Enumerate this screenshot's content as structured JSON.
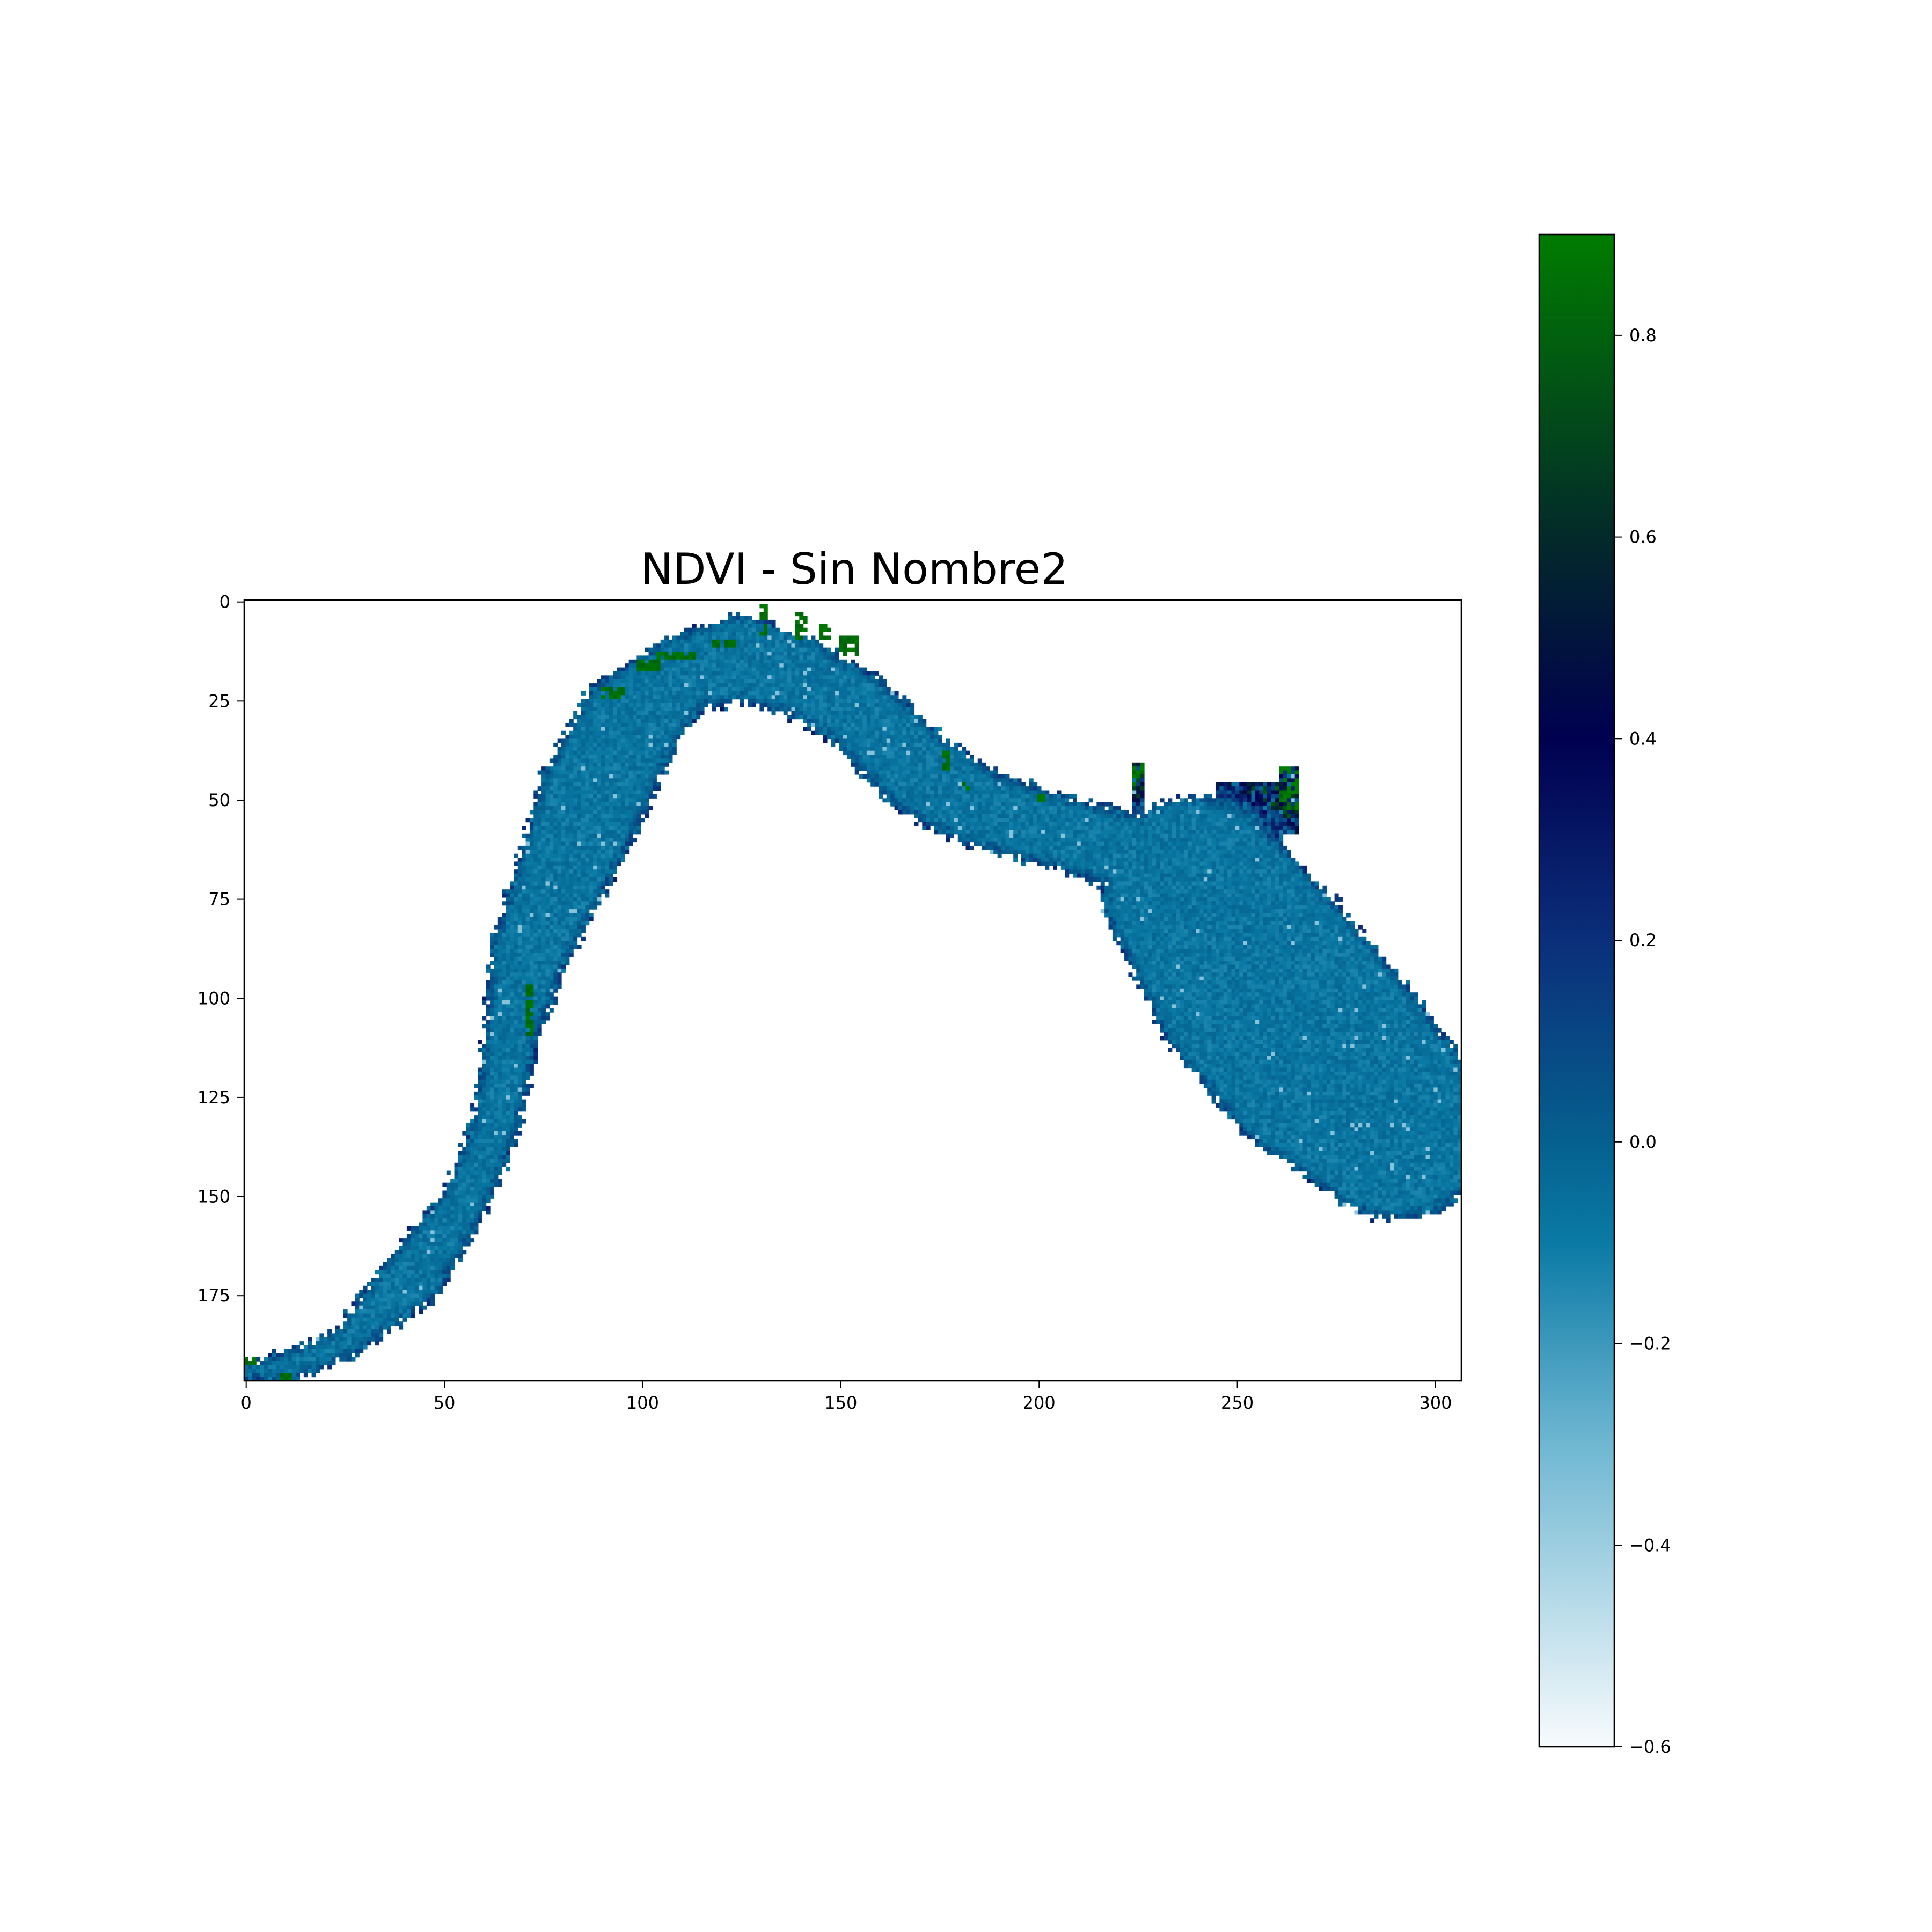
{
  "chart_data": {
    "type": "heatmap",
    "title": "NDVI - Sin Nombre2",
    "xlabel": "",
    "ylabel": "",
    "image_shape": {
      "rows": 197,
      "cols": 307
    },
    "xlim": [
      0,
      307
    ],
    "ylim": [
      197,
      0
    ],
    "x_ticks": [
      0,
      50,
      100,
      150,
      200,
      250,
      300
    ],
    "x_tick_labels": [
      "0",
      "50",
      "100",
      "150",
      "200",
      "250",
      "300"
    ],
    "y_ticks": [
      0,
      25,
      50,
      75,
      100,
      125,
      150,
      175
    ],
    "y_tick_labels": [
      "0",
      "25",
      "50",
      "75",
      "100",
      "125",
      "150",
      "175"
    ],
    "colormap": {
      "name": "NDVI",
      "stops": [
        {
          "value": -0.6,
          "color": "#f7fbfd"
        },
        {
          "value": -0.3,
          "color": "#6fb7d2"
        },
        {
          "value": -0.1,
          "color": "#0a7aa5"
        },
        {
          "value": 0.0,
          "color": "#05608f"
        },
        {
          "value": 0.2,
          "color": "#0b2f7a"
        },
        {
          "value": 0.4,
          "color": "#000050"
        },
        {
          "value": 0.6,
          "color": "#032a2a"
        },
        {
          "value": 0.9,
          "color": "#007c00"
        }
      ]
    },
    "colorbar": {
      "range": [
        -0.6,
        0.9
      ],
      "ticks": [
        0.8,
        0.6,
        0.4,
        0.2,
        0.0,
        -0.2,
        -0.4,
        -0.6
      ],
      "tick_labels": [
        "0.8",
        "0.6",
        "0.4",
        "0.2",
        "0.0",
        "−0.2",
        "−0.4",
        "−0.6"
      ],
      "placement": "right"
    },
    "water_body_centerline": [
      {
        "x": 0,
        "y": 194,
        "width": 2
      },
      {
        "x": 10,
        "y": 193,
        "width": 4
      },
      {
        "x": 25,
        "y": 187,
        "width": 4
      },
      {
        "x": 42,
        "y": 170,
        "width": 8
      },
      {
        "x": 55,
        "y": 152,
        "width": 6
      },
      {
        "x": 63,
        "y": 132,
        "width": 6
      },
      {
        "x": 67,
        "y": 108,
        "width": 7
      },
      {
        "x": 72,
        "y": 87,
        "width": 10
      },
      {
        "x": 80,
        "y": 68,
        "width": 12
      },
      {
        "x": 88,
        "y": 48,
        "width": 14
      },
      {
        "x": 97,
        "y": 30,
        "width": 13
      },
      {
        "x": 110,
        "y": 18,
        "width": 10
      },
      {
        "x": 125,
        "y": 14,
        "width": 11
      },
      {
        "x": 140,
        "y": 19,
        "width": 10
      },
      {
        "x": 155,
        "y": 28,
        "width": 10
      },
      {
        "x": 170,
        "y": 43,
        "width": 11
      },
      {
        "x": 185,
        "y": 52,
        "width": 10
      },
      {
        "x": 205,
        "y": 58,
        "width": 9
      },
      {
        "x": 222,
        "y": 63,
        "width": 10
      },
      {
        "x": 240,
        "y": 73,
        "width": 24
      },
      {
        "x": 255,
        "y": 95,
        "width": 28
      },
      {
        "x": 272,
        "y": 115,
        "width": 28
      },
      {
        "x": 290,
        "y": 132,
        "width": 24
      },
      {
        "x": 302,
        "y": 138,
        "width": 12
      },
      {
        "x": 307,
        "y": 134,
        "width": 8
      }
    ],
    "water_body_lobes": [
      {
        "x": 253,
        "y": 55,
        "w": 16,
        "h": 18
      },
      {
        "x": 263,
        "y": 50,
        "w": 5,
        "h": 16
      },
      {
        "x": 225,
        "y": 47,
        "w": 3,
        "h": 12
      },
      {
        "x": 292,
        "y": 148,
        "w": 16,
        "h": 12
      },
      {
        "x": 261,
        "y": 127,
        "w": 10,
        "h": 6
      }
    ],
    "vegetation_patches": [
      {
        "x": 90,
        "y": 22,
        "w": 6,
        "h": 3
      },
      {
        "x": 99,
        "y": 15,
        "w": 6,
        "h": 3
      },
      {
        "x": 104,
        "y": 13,
        "w": 10,
        "h": 2
      },
      {
        "x": 118,
        "y": 10,
        "w": 6,
        "h": 2
      },
      {
        "x": 130,
        "y": 1,
        "w": 2,
        "h": 8
      },
      {
        "x": 139,
        "y": 3,
        "w": 3,
        "h": 7
      },
      {
        "x": 145,
        "y": 6,
        "w": 3,
        "h": 4
      },
      {
        "x": 150,
        "y": 9,
        "w": 5,
        "h": 5
      },
      {
        "x": 176,
        "y": 38,
        "w": 2,
        "h": 5
      },
      {
        "x": 181,
        "y": 46,
        "w": 2,
        "h": 2
      },
      {
        "x": 200,
        "y": 49,
        "w": 2,
        "h": 2
      },
      {
        "x": 71,
        "y": 97,
        "w": 2,
        "h": 13
      },
      {
        "x": 0,
        "y": 191,
        "w": 3,
        "h": 2
      },
      {
        "x": 9,
        "y": 195,
        "w": 3,
        "h": 2
      }
    ]
  }
}
